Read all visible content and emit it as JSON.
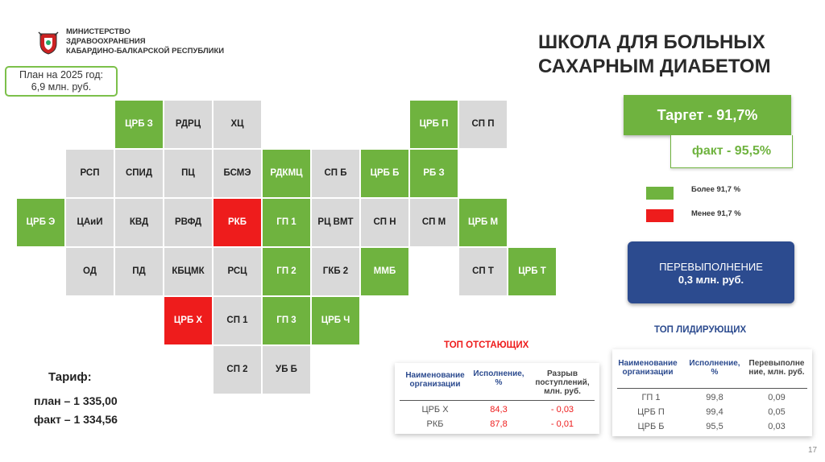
{
  "header": {
    "ministry_lines": [
      "МИНИСТЕРСТВО",
      "ЗДРАВООХРАНЕНИЯ",
      "КАБАРДИНО-БАЛКАРСКОЙ РЕСПУБЛИКИ"
    ],
    "logo_icon": "coat-of-arms-icon",
    "title_lines": [
      "ШКОЛА ДЛЯ БОЛЬНЫХ",
      "САХАРНЫМ ДИАБЕТОМ"
    ]
  },
  "plan": {
    "line1": "План на 2025 год:",
    "line2": "6,9 млн. руб."
  },
  "colors": {
    "green": "#6fb33f",
    "red": "#ee1c1c",
    "grey": "#d9d9d9",
    "blue": "#2c4b8f"
  },
  "grid": [
    {
      "label": "ЦРБ З",
      "status": "green"
    },
    {
      "label": "РДРЦ",
      "status": "grey"
    },
    {
      "label": "ХЦ",
      "status": "grey"
    },
    {
      "label": "ЦРБ П",
      "status": "green"
    },
    {
      "label": "СП П",
      "status": "grey"
    },
    {
      "label": "РСП",
      "status": "grey"
    },
    {
      "label": "СПИД",
      "status": "grey"
    },
    {
      "label": "ПЦ",
      "status": "grey"
    },
    {
      "label": "БСМЭ",
      "status": "grey"
    },
    {
      "label": "РДКМЦ",
      "status": "green"
    },
    {
      "label": "СП Б",
      "status": "grey"
    },
    {
      "label": "ЦРБ Б",
      "status": "green"
    },
    {
      "label": "РБ З",
      "status": "green"
    },
    {
      "label": "ЦРБ Э",
      "status": "green"
    },
    {
      "label": "ЦАиИ",
      "status": "grey"
    },
    {
      "label": "КВД",
      "status": "grey"
    },
    {
      "label": "РВФД",
      "status": "grey"
    },
    {
      "label": "РКБ",
      "status": "red"
    },
    {
      "label": "ГП 1",
      "status": "green"
    },
    {
      "label": "РЦ ВМТ",
      "status": "grey"
    },
    {
      "label": "СП Н",
      "status": "grey"
    },
    {
      "label": "СП М",
      "status": "grey"
    },
    {
      "label": "ЦРБ М",
      "status": "green"
    },
    {
      "label": "ОД",
      "status": "grey"
    },
    {
      "label": "ПД",
      "status": "grey"
    },
    {
      "label": "КБЦМК",
      "status": "grey"
    },
    {
      "label": "РСЦ",
      "status": "grey"
    },
    {
      "label": "ГП 2",
      "status": "green"
    },
    {
      "label": "ГКБ 2",
      "status": "grey"
    },
    {
      "label": "ММБ",
      "status": "green"
    },
    {
      "label": "СП Т",
      "status": "grey"
    },
    {
      "label": "ЦРБ Т",
      "status": "green"
    },
    {
      "label": "ЦРБ Х",
      "status": "red"
    },
    {
      "label": "СП 1",
      "status": "grey"
    },
    {
      "label": "ГП 3",
      "status": "green"
    },
    {
      "label": "ЦРБ Ч",
      "status": "green"
    },
    {
      "label": "СП 2",
      "status": "grey"
    },
    {
      "label": "УБ Б",
      "status": "grey"
    }
  ],
  "target": {
    "label": "Таргет  -  91,7%"
  },
  "fact": {
    "label": "факт  -  95,5%"
  },
  "legend": {
    "above": "Более 91,7 %",
    "below": "Менее 91,7 %"
  },
  "overfulfillment": {
    "label": "ПЕРЕВЫПОЛНЕНИЕ",
    "value": "0,3 млн. руб."
  },
  "leaders": {
    "title": "ТОП ЛИДИРУЮЩИХ",
    "headers": [
      "Наименование организации",
      "Исполнение, %",
      "Перевыполне ние, млн. руб."
    ],
    "rows": [
      [
        "ГП 1",
        "99,8",
        "0,09"
      ],
      [
        "ЦРБ П",
        "99,4",
        "0,05"
      ],
      [
        "ЦРБ Б",
        "95,5",
        "0,03"
      ]
    ]
  },
  "laggards": {
    "title": "ТОП ОТСТАЮЩИХ",
    "headers": [
      "Наименование организации",
      "Исполнение, %",
      "Разрыв поступлений, млн. руб."
    ],
    "rows": [
      [
        "ЦРБ Х",
        "84,3",
        "- 0,03"
      ],
      [
        "РКБ",
        "87,8",
        "- 0,01"
      ]
    ]
  },
  "tariff": {
    "title": "Тариф:",
    "plan": "план – 1 335,00",
    "fact": "факт – 1 334,56"
  },
  "page_number": "17"
}
